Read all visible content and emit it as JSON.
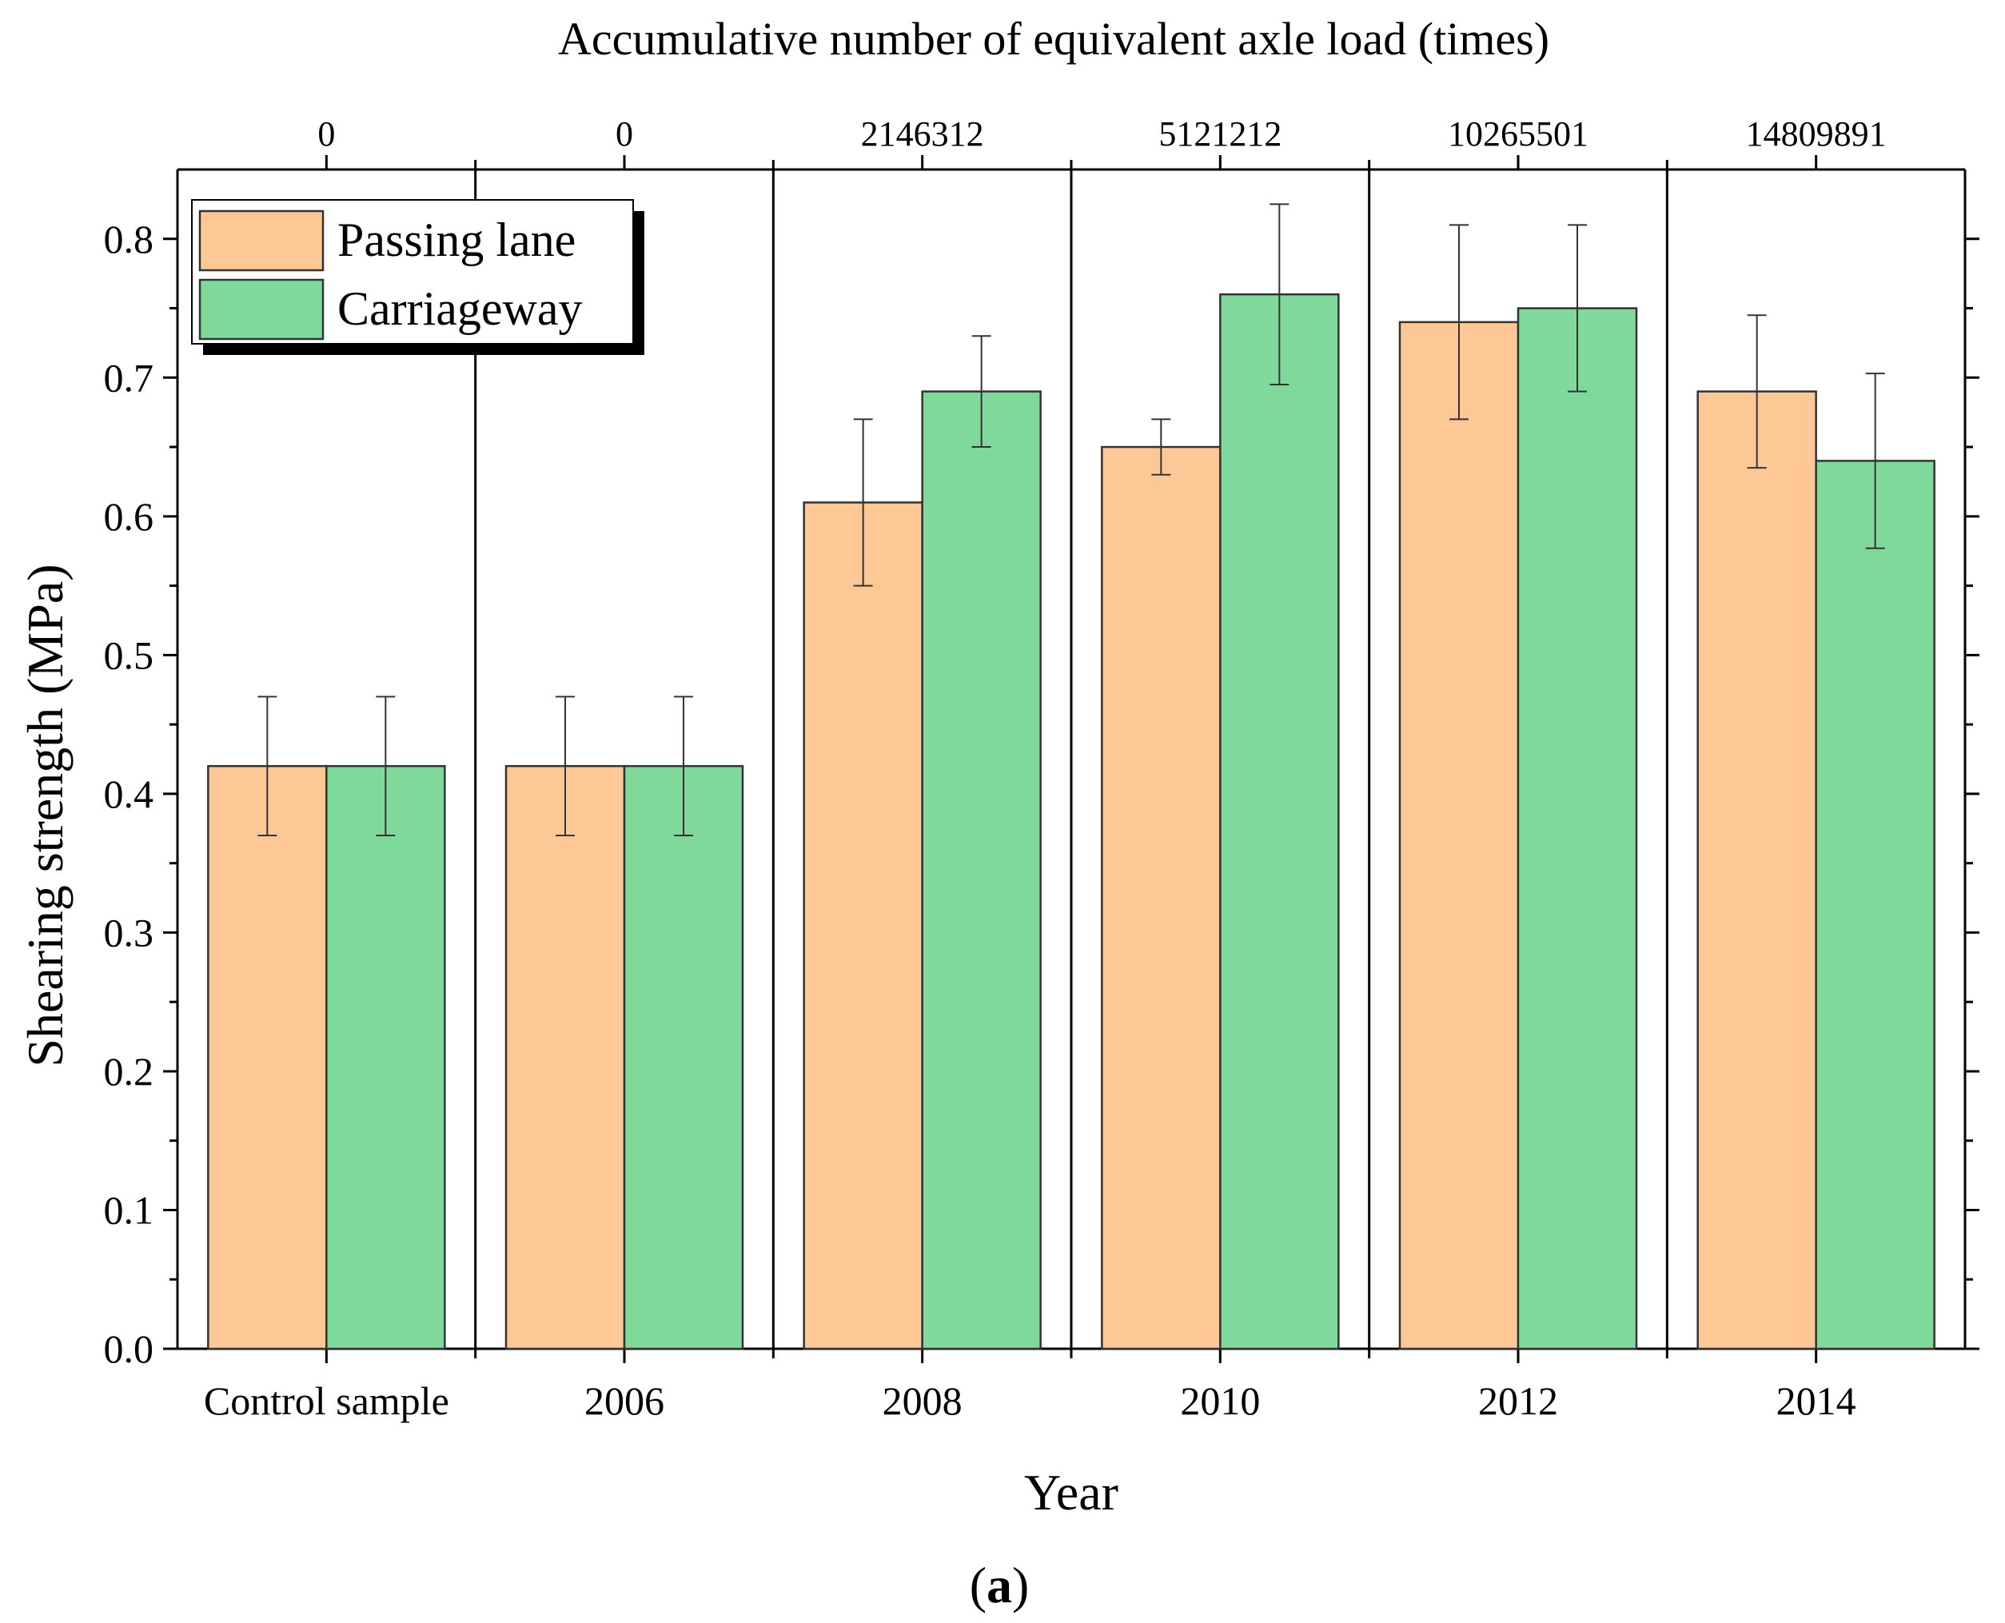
{
  "chart_data": {
    "type": "bar",
    "top_axis_title": "Accumulative number of equivalent axle load (times)",
    "top_axis_labels": [
      "0",
      "0",
      "2146312",
      "5121212",
      "10265501",
      "14809891"
    ],
    "xlabel": "Year",
    "ylabel": "Shearing strength (MPa)",
    "categories": [
      "Control sample",
      "2006",
      "2008",
      "2010",
      "2012",
      "2014"
    ],
    "ylim": [
      0,
      0.85
    ],
    "yticks": [
      "0.0",
      "0.1",
      "0.2",
      "0.3",
      "0.4",
      "0.5",
      "0.6",
      "0.7",
      "0.8"
    ],
    "series": [
      {
        "name": "Passing lane",
        "color": "#FEC896",
        "values": [
          0.42,
          0.42,
          0.61,
          0.65,
          0.74,
          0.69
        ],
        "errors": [
          0.05,
          0.05,
          0.06,
          0.02,
          0.07,
          0.055
        ]
      },
      {
        "name": "Carriageway",
        "color": "#7FD99A",
        "values": [
          0.42,
          0.42,
          0.69,
          0.76,
          0.75,
          0.64
        ],
        "errors": [
          0.05,
          0.05,
          0.04,
          0.065,
          0.06,
          0.063
        ]
      }
    ],
    "legend_position": "top-left",
    "caption_open": "(",
    "caption_letter": "a",
    "caption_close": ")"
  }
}
